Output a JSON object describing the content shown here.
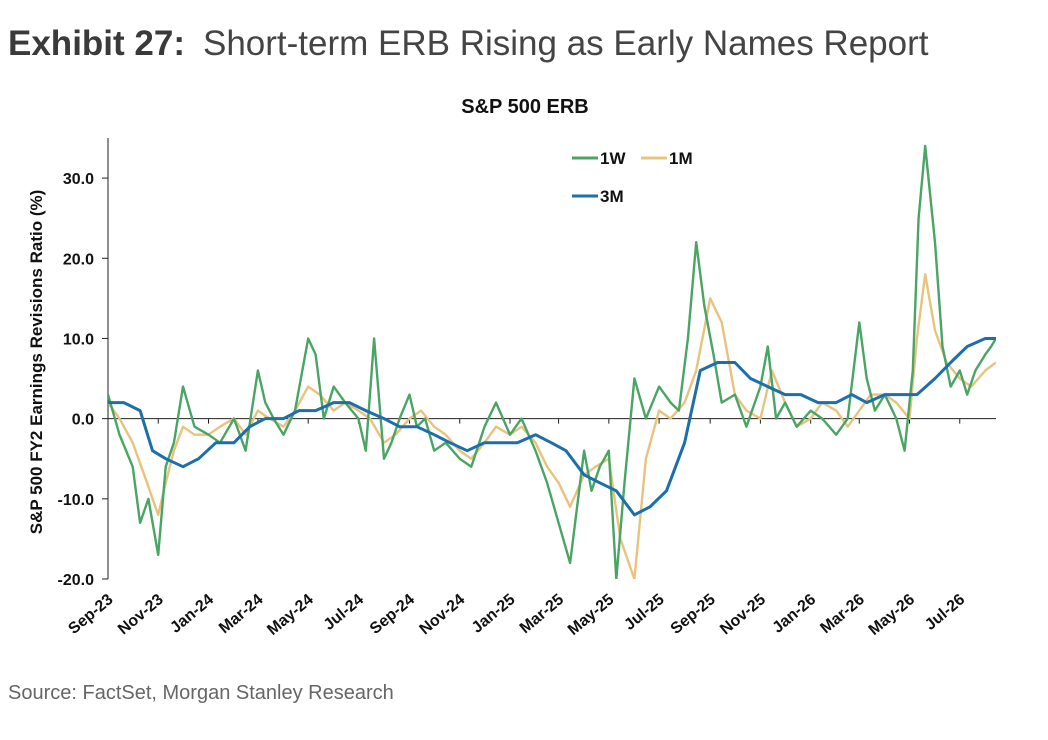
{
  "header": {
    "exhibit_label": "Exhibit 27:",
    "exhibit_title": "Short-term ERB Rising as Early Names Report"
  },
  "footer": {
    "source": "Source: FactSet, Morgan Stanley Research"
  },
  "chart_data": {
    "type": "line",
    "title": "S&P 500 ERB",
    "xlabel": "",
    "ylabel": "S&P 500 FY2 Earnings Revisions Ratio (%)",
    "ylim": [
      -20,
      35
    ],
    "yticks": [
      -20,
      -10,
      0,
      10,
      20,
      30
    ],
    "ytick_labels": [
      "-20.0",
      "-10.0",
      "0.0",
      "10.0",
      "20.0",
      "30.0"
    ],
    "xlim": [
      "2023-09-01",
      "2026-08-14"
    ],
    "xtick_labels": [
      "Sep-23",
      "Nov-23",
      "Jan-24",
      "Mar-24",
      "May-24",
      "Jul-24",
      "Sep-24",
      "Nov-24",
      "Jan-25",
      "Mar-25",
      "May-25",
      "Jul-25",
      "Sep-25",
      "Nov-25",
      "Jan-26",
      "Mar-26",
      "May-26",
      "Jul-26"
    ],
    "xtick_dates": [
      "2023-09-01",
      "2023-11-01",
      "2024-01-01",
      "2024-03-01",
      "2024-05-01",
      "2024-07-01",
      "2024-09-01",
      "2024-11-01",
      "2025-01-01",
      "2025-03-01",
      "2025-05-01",
      "2025-07-01",
      "2025-09-01",
      "2025-11-01",
      "2026-01-01",
      "2026-03-01",
      "2026-05-01",
      "2026-07-01"
    ],
    "grid": false,
    "legend_position": "top-center",
    "series": [
      {
        "name": "1W",
        "color": "#4aa564",
        "x": [
          "2023-09-01",
          "2023-09-15",
          "2023-10-01",
          "2023-10-10",
          "2023-10-20",
          "2023-11-01",
          "2023-11-10",
          "2023-11-20",
          "2023-12-01",
          "2023-12-15",
          "2024-01-01",
          "2024-01-15",
          "2024-02-01",
          "2024-02-15",
          "2024-03-01",
          "2024-03-10",
          "2024-03-20",
          "2024-04-01",
          "2024-04-15",
          "2024-05-01",
          "2024-05-10",
          "2024-05-20",
          "2024-06-01",
          "2024-06-15",
          "2024-07-01",
          "2024-07-10",
          "2024-07-20",
          "2024-08-01",
          "2024-08-10",
          "2024-08-20",
          "2024-09-01",
          "2024-09-10",
          "2024-09-20",
          "2024-10-01",
          "2024-10-15",
          "2024-11-01",
          "2024-11-15",
          "2024-12-01",
          "2024-12-15",
          "2025-01-01",
          "2025-01-15",
          "2025-02-01",
          "2025-02-15",
          "2025-03-01",
          "2025-03-15",
          "2025-04-01",
          "2025-04-10",
          "2025-04-20",
          "2025-05-01",
          "2025-05-10",
          "2025-05-20",
          "2025-06-01",
          "2025-06-15",
          "2025-07-01",
          "2025-07-15",
          "2025-07-25",
          "2025-08-05",
          "2025-08-15",
          "2025-08-25",
          "2025-09-05",
          "2025-09-15",
          "2025-10-01",
          "2025-10-15",
          "2025-11-01",
          "2025-11-10",
          "2025-11-20",
          "2025-12-01",
          "2025-12-15",
          "2026-01-01",
          "2026-01-15",
          "2026-02-01",
          "2026-02-15",
          "2026-03-01",
          "2026-03-10",
          "2026-03-20",
          "2026-04-01",
          "2026-04-15",
          "2026-04-25",
          "2026-05-05",
          "2026-05-12",
          "2026-05-20",
          "2026-06-01",
          "2026-06-10",
          "2026-06-20",
          "2026-07-01",
          "2026-07-10",
          "2026-07-20",
          "2026-08-01",
          "2026-08-08",
          "2026-08-14"
        ],
        "y": [
          3,
          -2,
          -6,
          -13,
          -10,
          -17,
          -6,
          -3,
          4,
          -1,
          -2,
          -3,
          0,
          -4,
          6,
          2,
          0,
          -2,
          1,
          10,
          8,
          0,
          4,
          2,
          0,
          -4,
          10,
          -5,
          -3,
          0,
          3,
          -1,
          0,
          -4,
          -3,
          -5,
          -6,
          -1,
          2,
          -2,
          0,
          -4,
          -8,
          -13,
          -18,
          -4,
          -9,
          -6,
          -4,
          -20,
          -8,
          5,
          0,
          4,
          2,
          1,
          10,
          22,
          14,
          8,
          2,
          3,
          -1,
          4,
          9,
          0,
          2,
          -1,
          1,
          0,
          -2,
          0,
          12,
          5,
          1,
          3,
          0,
          -4,
          6,
          25,
          34,
          22,
          9,
          4,
          6,
          3,
          6,
          8,
          9,
          10
        ]
      },
      {
        "name": "1M",
        "color": "#e8c37e",
        "x": [
          "2023-09-01",
          "2023-09-15",
          "2023-10-01",
          "2023-10-15",
          "2023-11-01",
          "2023-11-10",
          "2023-11-20",
          "2023-12-01",
          "2023-12-15",
          "2024-01-01",
          "2024-01-15",
          "2024-02-01",
          "2024-02-15",
          "2024-03-01",
          "2024-03-15",
          "2024-04-01",
          "2024-04-15",
          "2024-05-01",
          "2024-05-15",
          "2024-06-01",
          "2024-06-15",
          "2024-07-01",
          "2024-07-15",
          "2024-08-01",
          "2024-08-15",
          "2024-09-01",
          "2024-09-15",
          "2024-10-01",
          "2024-10-15",
          "2024-11-01",
          "2024-11-15",
          "2024-12-01",
          "2024-12-15",
          "2025-01-01",
          "2025-01-15",
          "2025-02-01",
          "2025-02-15",
          "2025-03-01",
          "2025-03-15",
          "2025-04-01",
          "2025-04-15",
          "2025-05-01",
          "2025-05-15",
          "2025-06-01",
          "2025-06-15",
          "2025-07-01",
          "2025-07-15",
          "2025-08-01",
          "2025-08-15",
          "2025-09-01",
          "2025-09-15",
          "2025-10-01",
          "2025-10-15",
          "2025-11-01",
          "2025-11-15",
          "2025-12-01",
          "2025-12-15",
          "2026-01-01",
          "2026-01-15",
          "2026-02-01",
          "2026-02-15",
          "2026-03-01",
          "2026-03-15",
          "2026-04-01",
          "2026-04-15",
          "2026-05-01",
          "2026-05-10",
          "2026-05-20",
          "2026-06-01",
          "2026-06-15",
          "2026-07-01",
          "2026-07-15",
          "2026-08-01",
          "2026-08-14"
        ],
        "y": [
          2,
          0,
          -3,
          -7,
          -12,
          -8,
          -4,
          -1,
          -2,
          -2,
          -1,
          0,
          -2,
          1,
          0,
          -1,
          1,
          4,
          3,
          1,
          2,
          1,
          0,
          -3,
          -2,
          0,
          1,
          -1,
          -2,
          -4,
          -5,
          -3,
          -1,
          -2,
          -1,
          -3,
          -6,
          -8,
          -11,
          -7,
          -6,
          -5,
          -15,
          -20,
          -5,
          1,
          0,
          2,
          6,
          15,
          12,
          3,
          1,
          0,
          6,
          2,
          -1,
          0,
          2,
          1,
          -1,
          1,
          3,
          3,
          2,
          0,
          10,
          18,
          11,
          7,
          5,
          4,
          6,
          7
        ]
      },
      {
        "name": "3M",
        "color": "#1b6faa",
        "x": [
          "2023-09-01",
          "2023-09-20",
          "2023-10-10",
          "2023-10-25",
          "2023-11-10",
          "2023-12-01",
          "2023-12-20",
          "2024-01-10",
          "2024-02-01",
          "2024-02-20",
          "2024-03-10",
          "2024-04-01",
          "2024-04-20",
          "2024-05-10",
          "2024-06-01",
          "2024-06-20",
          "2024-07-10",
          "2024-08-01",
          "2024-08-20",
          "2024-09-10",
          "2024-10-01",
          "2024-10-20",
          "2024-11-10",
          "2024-12-01",
          "2024-12-20",
          "2025-01-10",
          "2025-02-01",
          "2025-02-20",
          "2025-03-10",
          "2025-04-01",
          "2025-04-20",
          "2025-05-10",
          "2025-06-01",
          "2025-06-20",
          "2025-07-10",
          "2025-08-01",
          "2025-08-20",
          "2025-09-10",
          "2025-10-01",
          "2025-10-20",
          "2025-11-10",
          "2025-12-01",
          "2025-12-20",
          "2026-01-10",
          "2026-02-01",
          "2026-02-20",
          "2026-03-10",
          "2026-04-01",
          "2026-04-20",
          "2026-05-10",
          "2026-06-01",
          "2026-06-20",
          "2026-07-10",
          "2026-08-01",
          "2026-08-14"
        ],
        "y": [
          2,
          2,
          1,
          -4,
          -5,
          -6,
          -5,
          -3,
          -3,
          -1,
          0,
          0,
          1,
          1,
          2,
          2,
          1,
          0,
          -1,
          -1,
          -2,
          -3,
          -4,
          -3,
          -3,
          -3,
          -2,
          -3,
          -4,
          -7,
          -8,
          -9,
          -12,
          -11,
          -9,
          -3,
          6,
          7,
          7,
          5,
          4,
          3,
          3,
          2,
          2,
          3,
          2,
          3,
          3,
          3,
          5,
          7,
          9,
          10,
          10
        ]
      }
    ]
  }
}
